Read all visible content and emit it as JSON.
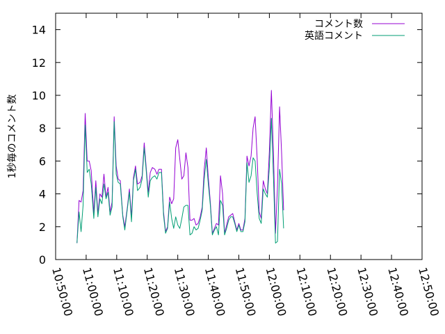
{
  "chart_data": {
    "type": "line",
    "title": "",
    "xlabel": "",
    "ylabel": "1秒毎のコメント数",
    "ylim": [
      0,
      15
    ],
    "yticks": [
      "0",
      "2",
      "4",
      "6",
      "8",
      "10",
      "12",
      "14"
    ],
    "xlim": [
      "10:50:00",
      "12:50:00"
    ],
    "xticks": [
      "10:50:00",
      "11:00:00",
      "11:10:00",
      "11:20:00",
      "11:30:00",
      "11:40:00",
      "11:50:00",
      "12:00:00",
      "12:10:00",
      "12:20:00",
      "12:30:00",
      "12:40:00",
      "12:50:00"
    ],
    "grid": false,
    "legend_position": "top-right",
    "series": [
      {
        "name": "コメント数",
        "color": "#9400d3",
        "values": [
          [
            "10:57:00",
            1.0
          ],
          [
            "10:57:40",
            3.6
          ],
          [
            "10:58:20",
            3.5
          ],
          [
            "10:59:00",
            4.2
          ],
          [
            "10:59:40",
            8.9
          ],
          [
            "11:00:20",
            6.0
          ],
          [
            "11:01:00",
            6.0
          ],
          [
            "11:01:40",
            5.4
          ],
          [
            "11:02:30",
            2.8
          ],
          [
            "11:03:10",
            4.8
          ],
          [
            "11:03:50",
            2.8
          ],
          [
            "11:04:30",
            4.0
          ],
          [
            "11:05:10",
            3.8
          ],
          [
            "11:05:50",
            5.2
          ],
          [
            "11:06:30",
            3.8
          ],
          [
            "11:07:10",
            4.4
          ],
          [
            "11:07:50",
            2.9
          ],
          [
            "11:08:30",
            3.5
          ],
          [
            "11:09:10",
            8.7
          ],
          [
            "11:09:50",
            5.7
          ],
          [
            "11:10:30",
            4.9
          ],
          [
            "11:11:10",
            4.8
          ],
          [
            "11:12:00",
            2.7
          ],
          [
            "11:12:40",
            2.0
          ],
          [
            "11:13:30",
            3.2
          ],
          [
            "11:14:10",
            4.3
          ],
          [
            "11:14:50",
            2.6
          ],
          [
            "11:15:30",
            5.0
          ],
          [
            "11:16:10",
            5.7
          ],
          [
            "11:16:50",
            4.6
          ],
          [
            "11:17:40",
            4.7
          ],
          [
            "11:18:20",
            5.1
          ],
          [
            "11:19:00",
            7.1
          ],
          [
            "11:19:40",
            5.6
          ],
          [
            "11:20:20",
            4.1
          ],
          [
            "11:21:00",
            5.3
          ],
          [
            "11:21:40",
            5.6
          ],
          [
            "11:22:30",
            5.5
          ],
          [
            "11:23:10",
            5.2
          ],
          [
            "11:23:50",
            5.5
          ],
          [
            "11:24:40",
            5.5
          ],
          [
            "11:25:20",
            2.9
          ],
          [
            "11:26:00",
            1.7
          ],
          [
            "11:26:40",
            2.0
          ],
          [
            "11:27:20",
            3.8
          ],
          [
            "11:28:00",
            3.4
          ],
          [
            "11:28:40",
            3.7
          ],
          [
            "11:29:20",
            6.8
          ],
          [
            "11:30:00",
            7.3
          ],
          [
            "11:30:40",
            6.1
          ],
          [
            "11:31:20",
            4.9
          ],
          [
            "11:32:00",
            5.1
          ],
          [
            "11:32:40",
            6.5
          ],
          [
            "11:33:20",
            5.6
          ],
          [
            "11:34:00",
            2.4
          ],
          [
            "11:34:40",
            2.4
          ],
          [
            "11:35:20",
            2.5
          ],
          [
            "11:36:00",
            2.1
          ],
          [
            "11:36:40",
            2.2
          ],
          [
            "11:37:20",
            2.6
          ],
          [
            "11:38:00",
            3.2
          ],
          [
            "11:38:40",
            5.5
          ],
          [
            "11:39:20",
            6.8
          ],
          [
            "11:40:00",
            5.0
          ],
          [
            "11:40:40",
            3.5
          ],
          [
            "11:41:20",
            1.6
          ],
          [
            "11:42:00",
            1.9
          ],
          [
            "11:42:40",
            2.2
          ],
          [
            "11:43:20",
            2.1
          ],
          [
            "11:44:00",
            5.1
          ],
          [
            "11:44:40",
            4.0
          ],
          [
            "11:45:20",
            1.6
          ],
          [
            "11:46:00",
            2.1
          ],
          [
            "11:46:40",
            2.6
          ],
          [
            "11:47:20",
            2.7
          ],
          [
            "11:48:00",
            2.8
          ],
          [
            "11:48:40",
            2.3
          ],
          [
            "11:49:20",
            1.8
          ],
          [
            "11:50:00",
            2.2
          ],
          [
            "11:50:40",
            1.8
          ],
          [
            "11:51:20",
            1.8
          ],
          [
            "11:52:00",
            2.5
          ],
          [
            "11:52:40",
            6.3
          ],
          [
            "11:53:20",
            5.7
          ],
          [
            "11:54:00",
            6.3
          ],
          [
            "11:54:40",
            8.0
          ],
          [
            "11:55:20",
            8.7
          ],
          [
            "11:56:00",
            6.1
          ],
          [
            "11:56:40",
            2.9
          ],
          [
            "11:57:20",
            2.5
          ],
          [
            "11:58:00",
            4.8
          ],
          [
            "11:58:40",
            4.3
          ],
          [
            "11:59:20",
            4.0
          ],
          [
            "12:00:00",
            6.6
          ],
          [
            "12:00:40",
            10.3
          ],
          [
            "12:01:20",
            6.5
          ],
          [
            "12:02:00",
            1.6
          ],
          [
            "12:02:40",
            4.5
          ],
          [
            "12:03:20",
            9.3
          ],
          [
            "12:04:00",
            6.5
          ],
          [
            "12:04:40",
            3.0
          ]
        ]
      },
      {
        "name": "英語コメント",
        "color": "#009e73",
        "values": [
          [
            "10:57:00",
            1.0
          ],
          [
            "10:57:40",
            2.9
          ],
          [
            "10:58:20",
            1.7
          ],
          [
            "10:59:00",
            3.3
          ],
          [
            "10:59:40",
            8.2
          ],
          [
            "11:00:20",
            5.3
          ],
          [
            "11:01:00",
            5.5
          ],
          [
            "11:01:40",
            4.6
          ],
          [
            "11:02:30",
            2.5
          ],
          [
            "11:03:10",
            4.4
          ],
          [
            "11:03:50",
            2.6
          ],
          [
            "11:04:30",
            3.7
          ],
          [
            "11:05:10",
            3.4
          ],
          [
            "11:05:50",
            4.6
          ],
          [
            "11:06:30",
            3.7
          ],
          [
            "11:07:10",
            4.1
          ],
          [
            "11:07:50",
            2.7
          ],
          [
            "11:08:30",
            3.2
          ],
          [
            "11:09:10",
            8.4
          ],
          [
            "11:09:50",
            5.2
          ],
          [
            "11:10:30",
            4.7
          ],
          [
            "11:11:10",
            4.6
          ],
          [
            "11:12:00",
            2.6
          ],
          [
            "11:12:40",
            1.8
          ],
          [
            "11:13:30",
            3.1
          ],
          [
            "11:14:10",
            4.1
          ],
          [
            "11:14:50",
            2.3
          ],
          [
            "11:15:30",
            4.8
          ],
          [
            "11:16:10",
            5.5
          ],
          [
            "11:16:50",
            4.2
          ],
          [
            "11:17:40",
            4.4
          ],
          [
            "11:18:20",
            4.9
          ],
          [
            "11:19:00",
            6.8
          ],
          [
            "11:19:40",
            5.4
          ],
          [
            "11:20:20",
            3.8
          ],
          [
            "11:21:00",
            4.8
          ],
          [
            "11:21:40",
            5.0
          ],
          [
            "11:22:30",
            5.1
          ],
          [
            "11:23:10",
            4.9
          ],
          [
            "11:23:50",
            5.3
          ],
          [
            "11:24:40",
            5.3
          ],
          [
            "11:25:20",
            2.7
          ],
          [
            "11:26:00",
            1.6
          ],
          [
            "11:26:40",
            1.9
          ],
          [
            "11:27:20",
            3.5
          ],
          [
            "11:28:00",
            2.5
          ],
          [
            "11:28:40",
            1.9
          ],
          [
            "11:29:20",
            2.6
          ],
          [
            "11:30:00",
            2.1
          ],
          [
            "11:30:40",
            1.9
          ],
          [
            "11:31:20",
            2.5
          ],
          [
            "11:32:00",
            3.2
          ],
          [
            "11:32:40",
            3.3
          ],
          [
            "11:33:20",
            3.3
          ],
          [
            "11:34:00",
            1.5
          ],
          [
            "11:34:40",
            1.6
          ],
          [
            "11:35:20",
            2.0
          ],
          [
            "11:36:00",
            1.8
          ],
          [
            "11:36:40",
            1.9
          ],
          [
            "11:37:20",
            2.4
          ],
          [
            "11:38:00",
            3.0
          ],
          [
            "11:38:40",
            4.9
          ],
          [
            "11:39:20",
            6.1
          ],
          [
            "11:40:00",
            4.6
          ],
          [
            "11:40:40",
            3.3
          ],
          [
            "11:41:20",
            1.5
          ],
          [
            "11:42:00",
            1.8
          ],
          [
            "11:42:40",
            2.0
          ],
          [
            "11:43:20",
            1.5
          ],
          [
            "11:44:00",
            3.6
          ],
          [
            "11:44:40",
            3.3
          ],
          [
            "11:45:20",
            1.5
          ],
          [
            "11:46:00",
            1.9
          ],
          [
            "11:46:40",
            2.4
          ],
          [
            "11:47:20",
            2.6
          ],
          [
            "11:48:00",
            2.6
          ],
          [
            "11:48:40",
            2.2
          ],
          [
            "11:49:20",
            1.7
          ],
          [
            "11:50:00",
            2.1
          ],
          [
            "11:50:40",
            1.7
          ],
          [
            "11:51:20",
            1.7
          ],
          [
            "11:52:00",
            2.3
          ],
          [
            "11:52:40",
            5.9
          ],
          [
            "11:53:20",
            4.7
          ],
          [
            "11:54:00",
            5.1
          ],
          [
            "11:54:40",
            6.2
          ],
          [
            "11:55:20",
            6.0
          ],
          [
            "11:56:00",
            4.0
          ],
          [
            "11:56:40",
            2.5
          ],
          [
            "11:57:20",
            2.2
          ],
          [
            "11:58:00",
            4.3
          ],
          [
            "11:58:40",
            4.0
          ],
          [
            "11:59:20",
            3.8
          ],
          [
            "12:00:00",
            5.6
          ],
          [
            "12:00:40",
            8.6
          ],
          [
            "12:01:20",
            5.0
          ],
          [
            "12:02:00",
            1.0
          ],
          [
            "12:02:40",
            1.1
          ],
          [
            "12:03:20",
            5.5
          ],
          [
            "12:04:00",
            4.6
          ],
          [
            "12:04:40",
            1.9
          ]
        ]
      }
    ]
  }
}
